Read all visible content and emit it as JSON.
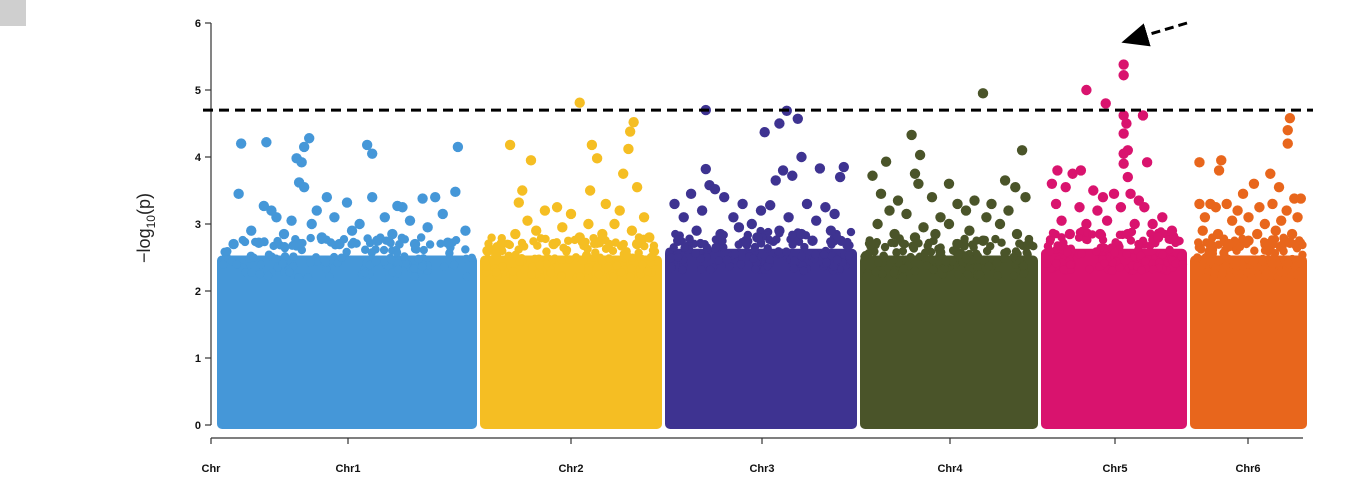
{
  "chart_data": {
    "type": "scatter",
    "title": "",
    "xlabel": "",
    "ylabel": "−log10(p)",
    "ylabel_parts": {
      "prefix": "−log",
      "sub": "10",
      "suffix": "(p)"
    },
    "ylim": [
      0,
      6
    ],
    "yticks": [
      0,
      1,
      2,
      3,
      4,
      5,
      6
    ],
    "threshold": 4.7,
    "grid": false,
    "legend": "none",
    "x_tick_labels": [
      "Chr",
      "Chr1",
      "Chr2",
      "Chr3",
      "Chr4",
      "Chr5",
      "Chr6"
    ],
    "chromosomes": [
      {
        "name": "Chr1",
        "color": "#4597d8",
        "baseline_max": 2.5,
        "points": [
          [
            0.08,
            4.2
          ],
          [
            0.18,
            4.22
          ],
          [
            0.35,
            4.28
          ],
          [
            0.33,
            4.15
          ],
          [
            0.58,
            4.18
          ],
          [
            0.6,
            4.05
          ],
          [
            0.94,
            4.15
          ],
          [
            0.3,
            3.98
          ],
          [
            0.32,
            3.92
          ],
          [
            0.31,
            3.62
          ],
          [
            0.33,
            3.55
          ],
          [
            0.07,
            3.45
          ],
          [
            0.17,
            3.27
          ],
          [
            0.42,
            3.4
          ],
          [
            0.5,
            3.32
          ],
          [
            0.6,
            3.4
          ],
          [
            0.7,
            3.27
          ],
          [
            0.8,
            3.38
          ],
          [
            0.85,
            3.4
          ],
          [
            0.93,
            3.48
          ],
          [
            0.22,
            3.1
          ],
          [
            0.28,
            3.05
          ],
          [
            0.36,
            3.0
          ],
          [
            0.45,
            3.1
          ],
          [
            0.55,
            3.0
          ],
          [
            0.65,
            3.1
          ],
          [
            0.75,
            3.05
          ],
          [
            0.88,
            3.15
          ],
          [
            0.12,
            2.9
          ],
          [
            0.25,
            2.85
          ],
          [
            0.4,
            2.8
          ],
          [
            0.52,
            2.9
          ],
          [
            0.68,
            2.85
          ],
          [
            0.82,
            2.95
          ],
          [
            0.97,
            2.9
          ],
          [
            0.05,
            2.7
          ],
          [
            0.15,
            2.72
          ],
          [
            0.3,
            2.68
          ],
          [
            0.47,
            2.7
          ],
          [
            0.62,
            2.75
          ],
          [
            0.77,
            2.7
          ],
          [
            0.9,
            2.72
          ],
          [
            0.2,
            3.2
          ],
          [
            0.38,
            3.2
          ],
          [
            0.72,
            3.25
          ]
        ]
      },
      {
        "name": "Chr2",
        "color": "#f5be23",
        "baseline_max": 2.5,
        "points": [
          [
            0.55,
            4.81
          ],
          [
            0.86,
            4.52
          ],
          [
            0.84,
            4.38
          ],
          [
            0.62,
            4.18
          ],
          [
            0.83,
            4.12
          ],
          [
            0.15,
            4.18
          ],
          [
            0.65,
            3.98
          ],
          [
            0.27,
            3.95
          ],
          [
            0.8,
            3.75
          ],
          [
            0.88,
            3.55
          ],
          [
            0.61,
            3.5
          ],
          [
            0.2,
            3.32
          ],
          [
            0.35,
            3.2
          ],
          [
            0.42,
            3.25
          ],
          [
            0.5,
            3.15
          ],
          [
            0.7,
            3.3
          ],
          [
            0.78,
            3.2
          ],
          [
            0.92,
            3.1
          ],
          [
            0.25,
            3.05
          ],
          [
            0.45,
            2.95
          ],
          [
            0.6,
            3.0
          ],
          [
            0.75,
            3.0
          ],
          [
            0.18,
            2.85
          ],
          [
            0.3,
            2.9
          ],
          [
            0.55,
            2.8
          ],
          [
            0.68,
            2.85
          ],
          [
            0.85,
            2.9
          ],
          [
            0.95,
            2.8
          ],
          [
            0.1,
            2.7
          ],
          [
            0.4,
            2.7
          ],
          [
            0.65,
            2.72
          ],
          [
            0.88,
            2.7
          ],
          [
            0.22,
            3.5
          ],
          [
            0.02,
            2.6
          ],
          [
            0.07,
            2.55
          ]
        ]
      },
      {
        "name": "Chr3",
        "color": "#3e3391",
        "baseline_max": 2.6,
        "points": [
          [
            0.2,
            4.7
          ],
          [
            0.64,
            4.69
          ],
          [
            0.7,
            4.57
          ],
          [
            0.52,
            4.37
          ],
          [
            0.6,
            4.5
          ],
          [
            0.72,
            4.0
          ],
          [
            0.2,
            3.82
          ],
          [
            0.82,
            3.83
          ],
          [
            0.95,
            3.85
          ],
          [
            0.62,
            3.8
          ],
          [
            0.58,
            3.65
          ],
          [
            0.67,
            3.72
          ],
          [
            0.93,
            3.7
          ],
          [
            0.22,
            3.58
          ],
          [
            0.12,
            3.45
          ],
          [
            0.25,
            3.52
          ],
          [
            0.3,
            3.4
          ],
          [
            0.4,
            3.3
          ],
          [
            0.5,
            3.2
          ],
          [
            0.55,
            3.28
          ],
          [
            0.75,
            3.3
          ],
          [
            0.85,
            3.25
          ],
          [
            0.03,
            3.3
          ],
          [
            0.08,
            3.1
          ],
          [
            0.18,
            3.2
          ],
          [
            0.35,
            3.1
          ],
          [
            0.45,
            3.0
          ],
          [
            0.65,
            3.1
          ],
          [
            0.8,
            3.05
          ],
          [
            0.9,
            3.15
          ],
          [
            0.15,
            2.9
          ],
          [
            0.28,
            2.85
          ],
          [
            0.38,
            2.95
          ],
          [
            0.48,
            2.8
          ],
          [
            0.6,
            2.9
          ],
          [
            0.72,
            2.85
          ],
          [
            0.88,
            2.9
          ],
          [
            0.05,
            2.75
          ],
          [
            0.42,
            2.75
          ],
          [
            0.78,
            2.75
          ]
        ]
      },
      {
        "name": "Chr4",
        "color": "#4a5429",
        "baseline_max": 2.5,
        "points": [
          [
            0.7,
            4.95
          ],
          [
            0.28,
            4.33
          ],
          [
            0.93,
            4.1
          ],
          [
            0.33,
            4.03
          ],
          [
            0.13,
            3.93
          ],
          [
            0.3,
            3.75
          ],
          [
            0.05,
            3.72
          ],
          [
            0.83,
            3.65
          ],
          [
            0.32,
            3.6
          ],
          [
            0.5,
            3.6
          ],
          [
            0.89,
            3.55
          ],
          [
            0.1,
            3.45
          ],
          [
            0.2,
            3.35
          ],
          [
            0.4,
            3.4
          ],
          [
            0.55,
            3.3
          ],
          [
            0.65,
            3.35
          ],
          [
            0.75,
            3.3
          ],
          [
            0.95,
            3.4
          ],
          [
            0.15,
            3.2
          ],
          [
            0.25,
            3.15
          ],
          [
            0.45,
            3.1
          ],
          [
            0.6,
            3.2
          ],
          [
            0.72,
            3.1
          ],
          [
            0.85,
            3.2
          ],
          [
            0.08,
            3.0
          ],
          [
            0.35,
            2.95
          ],
          [
            0.5,
            3.0
          ],
          [
            0.8,
            3.0
          ],
          [
            0.18,
            2.85
          ],
          [
            0.3,
            2.8
          ],
          [
            0.42,
            2.85
          ],
          [
            0.62,
            2.9
          ],
          [
            0.9,
            2.85
          ],
          [
            0.04,
            2.7
          ],
          [
            0.55,
            2.7
          ],
          [
            0.7,
            2.75
          ],
          [
            0.97,
            2.7
          ]
        ]
      },
      {
        "name": "Chr5",
        "color": "#d9136e",
        "baseline_max": 2.6,
        "points": [
          [
            0.57,
            5.38
          ],
          [
            0.57,
            5.22
          ],
          [
            0.3,
            5.0
          ],
          [
            0.44,
            4.8
          ],
          [
            0.57,
            4.62
          ],
          [
            0.59,
            4.5
          ],
          [
            0.71,
            4.62
          ],
          [
            0.57,
            4.35
          ],
          [
            0.6,
            4.1
          ],
          [
            0.57,
            4.05
          ],
          [
            0.74,
            3.92
          ],
          [
            0.57,
            3.9
          ],
          [
            0.6,
            3.7
          ],
          [
            0.09,
            3.8
          ],
          [
            0.2,
            3.75
          ],
          [
            0.26,
            3.8
          ],
          [
            0.05,
            3.6
          ],
          [
            0.15,
            3.55
          ],
          [
            0.35,
            3.5
          ],
          [
            0.42,
            3.4
          ],
          [
            0.5,
            3.45
          ],
          [
            0.62,
            3.45
          ],
          [
            0.68,
            3.35
          ],
          [
            0.08,
            3.3
          ],
          [
            0.25,
            3.25
          ],
          [
            0.38,
            3.2
          ],
          [
            0.55,
            3.25
          ],
          [
            0.72,
            3.25
          ],
          [
            0.85,
            3.1
          ],
          [
            0.12,
            3.05
          ],
          [
            0.3,
            3.0
          ],
          [
            0.45,
            3.05
          ],
          [
            0.65,
            3.0
          ],
          [
            0.78,
            3.0
          ],
          [
            0.92,
            2.9
          ],
          [
            0.18,
            2.85
          ],
          [
            0.4,
            2.85
          ],
          [
            0.6,
            2.85
          ],
          [
            0.82,
            2.8
          ],
          [
            0.95,
            2.75
          ]
        ]
      },
      {
        "name": "Chr6",
        "color": "#e8661c",
        "baseline_max": 2.5,
        "points": [
          [
            0.88,
            4.58
          ],
          [
            0.86,
            4.4
          ],
          [
            0.86,
            4.2
          ],
          [
            0.05,
            3.92
          ],
          [
            0.25,
            3.95
          ],
          [
            0.23,
            3.8
          ],
          [
            0.7,
            3.75
          ],
          [
            0.55,
            3.6
          ],
          [
            0.78,
            3.55
          ],
          [
            0.45,
            3.45
          ],
          [
            0.92,
            3.38
          ],
          [
            0.98,
            3.38
          ],
          [
            0.05,
            3.3
          ],
          [
            0.15,
            3.3
          ],
          [
            0.2,
            3.25
          ],
          [
            0.3,
            3.3
          ],
          [
            0.4,
            3.2
          ],
          [
            0.6,
            3.25
          ],
          [
            0.72,
            3.3
          ],
          [
            0.85,
            3.2
          ],
          [
            0.1,
            3.1
          ],
          [
            0.35,
            3.05
          ],
          [
            0.5,
            3.1
          ],
          [
            0.65,
            3.0
          ],
          [
            0.8,
            3.05
          ],
          [
            0.95,
            3.1
          ],
          [
            0.08,
            2.9
          ],
          [
            0.22,
            2.85
          ],
          [
            0.42,
            2.9
          ],
          [
            0.58,
            2.85
          ],
          [
            0.75,
            2.9
          ],
          [
            0.9,
            2.85
          ],
          [
            0.15,
            2.7
          ],
          [
            0.32,
            2.7
          ],
          [
            0.5,
            2.75
          ],
          [
            0.68,
            2.7
          ],
          [
            0.88,
            2.72
          ]
        ]
      }
    ],
    "annotation": {
      "type": "dashed-arrow",
      "points_to": "Chr5 top point"
    }
  }
}
